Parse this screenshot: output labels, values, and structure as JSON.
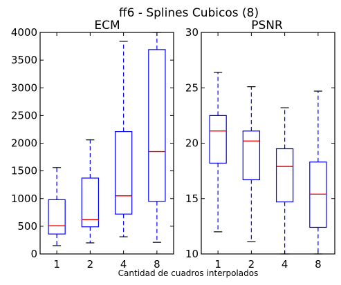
{
  "figure": {
    "suptitle": "ff6 - Splines Cubicos (8)",
    "xlabel": "Cantidad de cuadros interpolados"
  },
  "colors": {
    "box": "#0000ff",
    "median": "#ff0000",
    "whisker": "#0000ff",
    "cap": "#000000",
    "frame": "#000000"
  },
  "chart_data": [
    {
      "type": "box",
      "title": "ECM",
      "categories": [
        "1",
        "2",
        "4",
        "8"
      ],
      "ylim": [
        0,
        4000
      ],
      "yticks": [
        0,
        500,
        1000,
        1500,
        2000,
        2500,
        3000,
        3500,
        4000
      ],
      "boxes": [
        {
          "label": "1",
          "whislo": 150,
          "q1": 360,
          "med": 510,
          "q3": 980,
          "whishi": 1560
        },
        {
          "label": "2",
          "whislo": 200,
          "q1": 490,
          "med": 620,
          "q3": 1370,
          "whishi": 2060
        },
        {
          "label": "4",
          "whislo": 310,
          "q1": 720,
          "med": 1050,
          "q3": 2210,
          "whishi": 3840
        },
        {
          "label": "8",
          "whislo": 210,
          "q1": 950,
          "med": 1850,
          "q3": 3690,
          "whishi": 4000
        }
      ]
    },
    {
      "type": "box",
      "title": "PSNR",
      "categories": [
        "1",
        "2",
        "4",
        "8"
      ],
      "ylim": [
        10,
        30
      ],
      "yticks": [
        10,
        15,
        20,
        25,
        30
      ],
      "boxes": [
        {
          "label": "1",
          "whislo": 12.0,
          "q1": 18.2,
          "med": 21.1,
          "q3": 22.5,
          "whishi": 26.4
        },
        {
          "label": "2",
          "whislo": 11.1,
          "q1": 16.7,
          "med": 20.2,
          "q3": 21.1,
          "whishi": 25.1
        },
        {
          "label": "4",
          "whislo": 10.0,
          "q1": 14.7,
          "med": 17.9,
          "q3": 19.5,
          "whishi": 23.2
        },
        {
          "label": "8",
          "whislo": 10.0,
          "q1": 12.4,
          "med": 15.4,
          "q3": 18.3,
          "whishi": 24.7
        }
      ]
    }
  ]
}
